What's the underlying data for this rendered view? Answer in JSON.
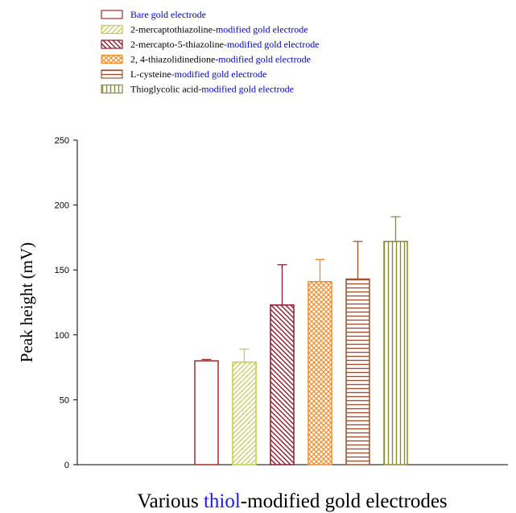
{
  "chart_data": {
    "type": "bar",
    "xlabel_parts": [
      {
        "text": "Various ",
        "color": "#000000"
      },
      {
        "text": "thiol",
        "color": "#1a1aff"
      },
      {
        "text": "-modified gold electrodes",
        "color": "#000000"
      }
    ],
    "ylabel": "Peak height (mV)",
    "ylim": [
      0,
      250
    ],
    "yticks": [
      0,
      50,
      100,
      150,
      200,
      250
    ],
    "legend_position": "top-left",
    "series": [
      {
        "legend": [
          {
            "text": "Bare gold electrode",
            "color": "#0000cc"
          }
        ],
        "value": 80,
        "error": 1,
        "color": "#a52a2a",
        "pattern": "none"
      },
      {
        "legend": [
          {
            "text": "2-mercaptothiazoline",
            "color": "#000000"
          },
          {
            "text": "-modified gold electrode",
            "color": "#0000cc"
          }
        ],
        "value": 79,
        "error": 10,
        "color": "#c2cf3c",
        "pattern": "hatch-forward"
      },
      {
        "legend": [
          {
            "text": "2-mercapto-5-thiazoline",
            "color": "#000000"
          },
          {
            "text": "-modified gold electrode",
            "color": "#0000cc"
          }
        ],
        "value": 123,
        "error": 31,
        "color": "#8b1a2b",
        "pattern": "hatch-back"
      },
      {
        "legend": [
          {
            "text": "2, 4-thiazolidinedione",
            "color": "#000000"
          },
          {
            "text": "-modified gold electrode",
            "color": "#0000cc"
          }
        ],
        "value": 141,
        "error": 17,
        "color": "#f28c28",
        "pattern": "crosshatch"
      },
      {
        "legend": [
          {
            "text": "L-cysteine",
            "color": "#000000"
          },
          {
            "text": "-modified gold electrode",
            "color": "#0000cc"
          }
        ],
        "value": 143,
        "error": 29,
        "color": "#a0522d",
        "pattern": "horizontal"
      },
      {
        "legend": [
          {
            "text": "Thioglycolic acid",
            "color": "#000000"
          },
          {
            "text": "-modified gold electrode",
            "color": "#0000cc"
          }
        ],
        "value": 172,
        "error": 19,
        "color": "#8b8b2e",
        "pattern": "vertical"
      }
    ]
  }
}
